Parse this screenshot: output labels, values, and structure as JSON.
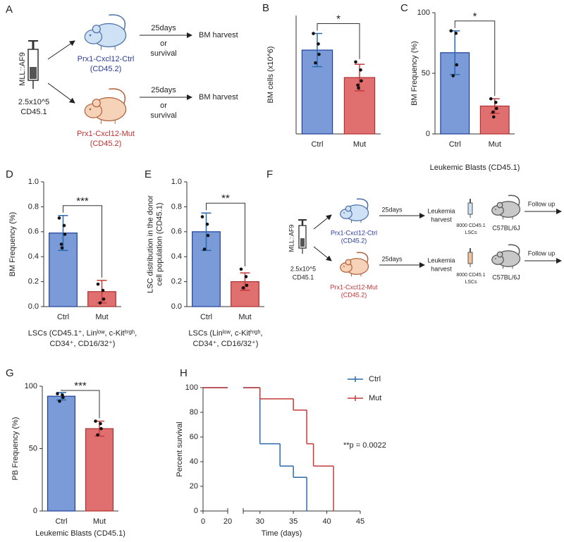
{
  "diagram_a": {
    "panel": "A",
    "vector": "MLL::AF9",
    "dose": "2.5x10^5",
    "donor": "CD45.1",
    "groups": [
      {
        "name": "Prx1-Cxcl12-Ctrl",
        "strain": "(CD45.2)",
        "interval": "25days",
        "or": "or",
        "alt": "survival",
        "outcome": "BM harvest"
      },
      {
        "name": "Prx1-Cxcl12-Mut",
        "strain": "(CD45.2)",
        "interval": "25days",
        "or": "or",
        "alt": "survival",
        "outcome": "BM harvest"
      }
    ]
  },
  "diagram_f": {
    "panel": "F",
    "vector": "MLL::AF9",
    "dose": "2.5x10^5",
    "donor": "CD45.1",
    "groups": [
      {
        "name": "Prx1-Cxcl12-Ctrl",
        "strain": "(CD45.2)",
        "interval": "25days",
        "step": "Leukemia",
        "step2": "harvest",
        "cells": "8000 CD45.1",
        "cells2": "LSCs",
        "recipient": "C57BL/6J",
        "outcome": "Follow up"
      },
      {
        "name": "Prx1-Cxcl12-Mut",
        "strain": "(CD45.2)",
        "interval": "25days",
        "step": "Leukemia",
        "step2": "harvest",
        "cells": "8000 CD45.1",
        "cells2": "LSCs",
        "recipient": "C57BL/6J",
        "outcome": "Follow up"
      }
    ]
  },
  "chart_data": [
    {
      "type": "bar",
      "panel": "B",
      "ylabel": [
        "BM cells (x10^6)"
      ],
      "categories": [
        "Ctrl",
        "Mut"
      ],
      "values": [
        177,
        119
      ],
      "errors": [
        35,
        28
      ],
      "points": [
        [
          212,
          190,
          168,
          150
        ],
        [
          152,
          135,
          112,
          103,
          97
        ]
      ],
      "colors": [
        "#7b9bd8",
        "#e07070"
      ],
      "edge_colors": [
        "#1f3f9a",
        "#b03030"
      ],
      "error_colors": [
        "#2a6aad",
        "#c43a3a"
      ],
      "ylim": [
        0,
        250
      ],
      "significance": "*"
    },
    {
      "type": "bar",
      "panel": "C",
      "ylabel": [
        "BM Frequency (%)"
      ],
      "xlabel": [
        "Leukemic Blasts (CD45.1)"
      ],
      "categories": [
        "Ctrl",
        "Mut"
      ],
      "values": [
        67,
        23
      ],
      "errors": [
        18,
        6
      ],
      "points": [
        [
          85,
          83,
          57,
          48
        ],
        [
          29,
          26,
          21,
          18,
          14
        ]
      ],
      "colors": [
        "#7b9bd8",
        "#e07070"
      ],
      "edge_colors": [
        "#1f3f9a",
        "#b03030"
      ],
      "error_colors": [
        "#2a6aad",
        "#c43a3a"
      ],
      "ylim": [
        0,
        100
      ],
      "yticks": [
        0,
        50,
        100
      ],
      "significance": "*"
    },
    {
      "type": "bar",
      "panel": "D",
      "ylabel": [
        "BM Frequency (%)"
      ],
      "xlabel": [
        "LSCs (CD45.1⁺, Linˡᵒʷ, c-Kitʰⁱᵍʰ,",
        "CD34⁺, CD16/32⁺)"
      ],
      "categories": [
        "Ctrl",
        "Mut"
      ],
      "values": [
        0.59,
        0.12
      ],
      "errors": [
        0.14,
        0.09
      ],
      "points": [
        [
          0.71,
          0.65,
          0.58,
          0.5,
          0.47
        ],
        [
          0.18,
          0.13,
          0.06,
          0.03
        ]
      ],
      "colors": [
        "#7b9bd8",
        "#e07070"
      ],
      "edge_colors": [
        "#1f3f9a",
        "#b03030"
      ],
      "error_colors": [
        "#2a6aad",
        "#c43a3a"
      ],
      "ylim": [
        0,
        1
      ],
      "yticks": [
        {
          "value": 0,
          "label": "0.0"
        },
        0.2,
        0.4,
        0.6,
        0.8,
        {
          "value": 1,
          "label": "1.0"
        }
      ],
      "significance": "***"
    },
    {
      "type": "bar",
      "panel": "E",
      "ylabel": [
        "LSC distribution in the donor",
        "cell population (CD45.1)"
      ],
      "xlabel": [
        "LSCs (Linˡᵒʷ, c-Kitʰⁱᵍʰ,",
        "CD34⁺, CD16/32⁺)"
      ],
      "categories": [
        "Ctrl",
        "Mut"
      ],
      "values": [
        0.6,
        0.2
      ],
      "errors": [
        0.15,
        0.07
      ],
      "points": [
        [
          0.72,
          0.66,
          0.57,
          0.46
        ],
        [
          0.3,
          0.24,
          0.17,
          0.15
        ]
      ],
      "colors": [
        "#7b9bd8",
        "#e07070"
      ],
      "edge_colors": [
        "#1f3f9a",
        "#b03030"
      ],
      "error_colors": [
        "#2a6aad",
        "#c43a3a"
      ],
      "ylim": [
        0,
        1
      ],
      "yticks": [
        {
          "value": 0,
          "label": "0.0"
        },
        0.2,
        0.4,
        0.6,
        0.8,
        {
          "value": 1,
          "label": "1.0"
        }
      ],
      "significance": "**"
    },
    {
      "type": "bar",
      "panel": "G",
      "ylabel": [
        "PB Frequency (%)"
      ],
      "xlabel": [
        "Leukemic Blasts (CD45.1)"
      ],
      "categories": [
        "Ctrl",
        "Mut"
      ],
      "values": [
        92,
        66
      ],
      "errors": [
        3,
        6
      ],
      "points": [
        [
          94,
          93,
          91,
          88
        ],
        [
          72,
          70,
          66,
          61
        ]
      ],
      "colors": [
        "#7b9bd8",
        "#e07070"
      ],
      "edge_colors": [
        "#1f3f9a",
        "#b03030"
      ],
      "error_colors": [
        "#2a6aad",
        "#c43a3a"
      ],
      "ylim": [
        0,
        100
      ],
      "yticks": [
        0,
        50,
        100
      ],
      "significance": "***"
    },
    {
      "type": "survival",
      "panel": "H",
      "ylabel": [
        "Percent survival"
      ],
      "xlabel": [
        "Time (days)"
      ],
      "series": [
        {
          "name": "Ctrl",
          "color": "#2a6aad",
          "x": [
            0,
            30,
            33,
            35,
            37
          ],
          "values": [
            100,
            54.5,
            36.4,
            27.3,
            0
          ]
        },
        {
          "name": "Mut",
          "color": "#c43a3a",
          "x": [
            0,
            30,
            35,
            37,
            38,
            41
          ],
          "values": [
            100,
            90.9,
            81.8,
            54.5,
            36.4,
            0
          ]
        }
      ],
      "xlim": [
        0,
        45
      ],
      "xticks": [
        0,
        20,
        30,
        35,
        40,
        45
      ],
      "x_break": true,
      "ylim": [
        0,
        100
      ],
      "yticks": [
        0,
        20,
        40,
        60,
        80,
        100
      ],
      "annotation": "**p = 0.0022"
    }
  ]
}
